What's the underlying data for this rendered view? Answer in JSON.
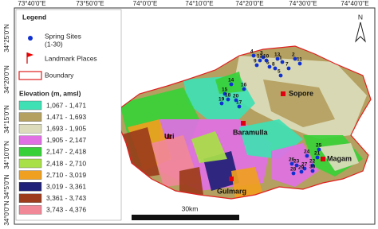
{
  "map": {
    "longitudes": [
      "73°40'0\"E",
      "73°50'0\"E",
      "74°0'0\"E",
      "74°10'0\"E",
      "74°20'0\"E",
      "74°30'0\"E",
      "74°40'0\"E"
    ],
    "latitudes": [
      "34°25'0\"N",
      "34°20'0\"N",
      "34°15'0\"N",
      "34°10'0\"N",
      "34°5'0\"N",
      "34°0'0\"N"
    ],
    "north": "N",
    "scale": "30km",
    "places": [
      "Sopore",
      "Baramulla",
      "Uri",
      "Gulmarg",
      "Magam"
    ],
    "springs": [
      "1",
      "2",
      "3",
      "4",
      "5",
      "6",
      "7",
      "8",
      "9",
      "10",
      "11",
      "12",
      "13",
      "14",
      "15",
      "16",
      "17",
      "18",
      "19",
      "20",
      "21",
      "22",
      "23",
      "24",
      "25",
      "26",
      "27",
      "28",
      "29",
      "30"
    ]
  },
  "legend": {
    "title": "Legend",
    "springs": "Spring Sites",
    "springs_range": "(1-30)",
    "landmarks": "Landmark Places",
    "boundary": "Boundary",
    "elevation_title": "Elevation (m, amsl)",
    "elevation": [
      {
        "label": "1,067 - 1,471",
        "color": "#3fe0b4"
      },
      {
        "label": "1,471 - 1,693",
        "color": "#b4a060"
      },
      {
        "label": "1,693 - 1,905",
        "color": "#dcdcbc"
      },
      {
        "label": "1,905 - 2,147",
        "color": "#e070e4"
      },
      {
        "label": "2,147 - 2,418",
        "color": "#38d038"
      },
      {
        "label": "2,418 - 2,710",
        "color": "#a8e048"
      },
      {
        "label": "2,710 - 3,019",
        "color": "#f0a020"
      },
      {
        "label": "3,019 - 3,361",
        "color": "#202078"
      },
      {
        "label": "3,361 - 3,743",
        "color": "#9c3c1c"
      },
      {
        "label": "3,743 - 4,376",
        "color": "#f08898"
      }
    ]
  }
}
